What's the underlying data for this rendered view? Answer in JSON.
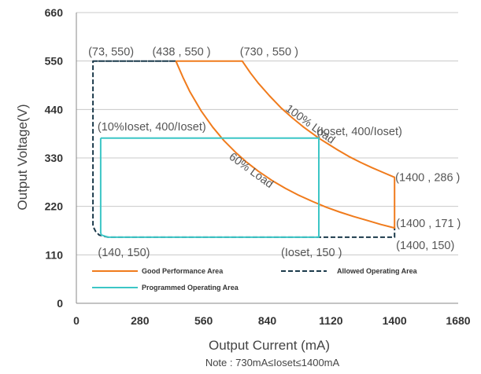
{
  "colors": {
    "good": "#f07b1c",
    "allowed": "#1b3a4b",
    "programmed": "#3cc6c6",
    "grid": "#c8c8c8",
    "axis": "#888888"
  },
  "chart_data": {
    "type": "line",
    "xlabel": "Output Current (mA)",
    "ylabel": "Output Voltage(V)",
    "note": "Note :  730mA≤Ioset≤1400mA",
    "xlim": [
      0,
      1680
    ],
    "ylim": [
      0,
      660
    ],
    "x_ticks": [
      0,
      280,
      560,
      840,
      1120,
      1400,
      1680
    ],
    "y_ticks": [
      0,
      110,
      220,
      330,
      440,
      550,
      660
    ],
    "x_tick_labels": [
      "0",
      "280",
      "560",
      "840",
      "1120",
      "1400",
      "1680"
    ],
    "y_tick_labels": [
      "0",
      "110",
      "220",
      "330",
      "440",
      "550",
      "660"
    ],
    "grid": "horizontal",
    "legend_placement": "bottom-left inside",
    "series": [
      {
        "name": "Good Performance Area",
        "key": "good",
        "style": "solid",
        "points": [
          [
            438,
            550
          ],
          [
            469,
            513
          ],
          [
            500,
            480
          ],
          [
            550,
            436
          ],
          [
            600,
            400
          ],
          [
            650,
            369
          ],
          [
            700,
            343
          ],
          [
            750,
            320
          ],
          [
            800,
            300
          ],
          [
            860,
            279
          ],
          [
            920,
            261
          ],
          [
            980,
            245
          ],
          [
            1040,
            231
          ],
          [
            1100,
            218
          ],
          [
            1160,
            207
          ],
          [
            1220,
            197
          ],
          [
            1280,
            188
          ],
          [
            1340,
            179
          ],
          [
            1400,
            171
          ],
          [
            1400,
            286
          ],
          [
            1350,
            297
          ],
          [
            1300,
            308
          ],
          [
            1250,
            320
          ],
          [
            1200,
            333
          ],
          [
            1150,
            348
          ],
          [
            1100,
            364
          ],
          [
            1067,
            375
          ],
          [
            1000,
            400
          ],
          [
            950,
            421
          ],
          [
            900,
            444
          ],
          [
            850,
            471
          ],
          [
            800,
            500
          ],
          [
            766,
            523
          ],
          [
            730,
            550
          ],
          [
            438,
            550
          ]
        ]
      },
      {
        "name": "Allowed Operating Area",
        "key": "allowed",
        "style": "dashed",
        "points": [
          [
            73,
            550
          ],
          [
            438,
            550
          ],
          [
            438,
            550
          ],
          [
            73,
            550
          ],
          [
            73,
            175
          ],
          [
            85,
            163
          ],
          [
            100,
            155
          ],
          [
            140,
            150
          ],
          [
            1400,
            150
          ],
          [
            1400,
            171
          ]
        ]
      },
      {
        "name": "Programmed Operating Area",
        "key": "programmed",
        "style": "solid",
        "points": [
          [
            107,
            375
          ],
          [
            1067,
            375
          ],
          [
            1067,
            150
          ],
          [
            140,
            150
          ],
          [
            110,
            155
          ],
          [
            107,
            160
          ],
          [
            107,
            375
          ]
        ]
      }
    ],
    "annotations": [
      {
        "text": "(73, 550)",
        "x": 73,
        "y": 550
      },
      {
        "text": "(438 , 550 )",
        "x": 438,
        "y": 550
      },
      {
        "text": "(730 , 550 )",
        "x": 730,
        "y": 550
      },
      {
        "text": "(10%Ioset, 400/Ioset)",
        "x": 107,
        "y": 375
      },
      {
        "text": "(Ioset, 400/Ioset)",
        "x": 1067,
        "y": 375
      },
      {
        "text": "(1400 , 286 )",
        "x": 1400,
        "y": 286
      },
      {
        "text": "(1400 , 171 )",
        "x": 1400,
        "y": 171
      },
      {
        "text": "(1400, 150)",
        "x": 1400,
        "y": 150
      },
      {
        "text": "(140, 150)",
        "x": 140,
        "y": 150
      },
      {
        "text": "(Ioset, 150 )",
        "x": 1067,
        "y": 150
      }
    ],
    "curve_labels": [
      {
        "text": "100% Load",
        "x": 1020,
        "y": 400,
        "angle": 36
      },
      {
        "text": "60% Load",
        "x": 760,
        "y": 295,
        "angle": 36
      }
    ]
  }
}
